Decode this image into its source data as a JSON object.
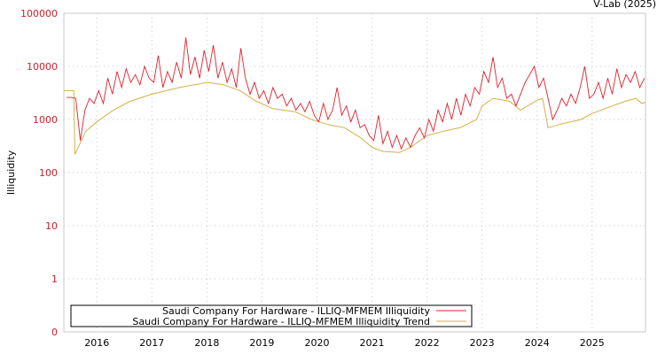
{
  "chart_data": {
    "type": "line",
    "credit": "V-Lab (2025)",
    "ylabel": "Illiquidity",
    "yscale": "log",
    "ylim": [
      0.1,
      100000
    ],
    "y_ticks": [
      {
        "v": 100000,
        "label": "100000"
      },
      {
        "v": 10000,
        "label": "10000"
      },
      {
        "v": 1000,
        "label": "1000"
      },
      {
        "v": 100,
        "label": "100"
      },
      {
        "v": 10,
        "label": "10"
      },
      {
        "v": 1,
        "label": "1"
      },
      {
        "v": 0.1,
        "label": "0"
      }
    ],
    "xlim": [
      2015.4,
      2025.97
    ],
    "x_ticks": [
      {
        "v": 2016,
        "label": "2016"
      },
      {
        "v": 2017,
        "label": "2017"
      },
      {
        "v": 2018,
        "label": "2018"
      },
      {
        "v": 2019,
        "label": "2019"
      },
      {
        "v": 2020,
        "label": "2020"
      },
      {
        "v": 2021,
        "label": "2021"
      },
      {
        "v": 2022,
        "label": "2022"
      },
      {
        "v": 2023,
        "label": "2023"
      },
      {
        "v": 2024,
        "label": "2024"
      },
      {
        "v": 2025,
        "label": "2025"
      }
    ],
    "grid": true,
    "legend_position": "bottom",
    "series": [
      {
        "name": "Saudi Company For Hardware - ILLIQ-MFMEM Illiquidity",
        "color": "#e0202a",
        "x_start": 2015.45,
        "x_step": 0.08333,
        "values": [
          2600,
          2600,
          2500,
          400,
          1500,
          2500,
          2000,
          3500,
          2000,
          6000,
          3000,
          8000,
          4000,
          9000,
          5000,
          7000,
          4500,
          10000,
          6000,
          5000,
          16000,
          4000,
          8000,
          5000,
          12000,
          6000,
          35000,
          7000,
          15000,
          6000,
          20000,
          8000,
          25000,
          6000,
          12000,
          5000,
          9000,
          4000,
          22000,
          6000,
          3000,
          5000,
          2500,
          3500,
          2000,
          4000,
          2500,
          3000,
          1800,
          2500,
          1500,
          2000,
          1400,
          2200,
          1200,
          900,
          2000,
          1000,
          1500,
          4000,
          1200,
          1800,
          900,
          1500,
          700,
          800,
          500,
          400,
          1200,
          350,
          600,
          300,
          500,
          280,
          450,
          300,
          500,
          700,
          450,
          1000,
          600,
          1500,
          900,
          2000,
          1000,
          2500,
          1200,
          3000,
          1800,
          4000,
          3000,
          8000,
          5000,
          15000,
          4000,
          6000,
          2500,
          3000,
          1800,
          3000,
          5000,
          7000,
          10000,
          4000,
          6000,
          2500,
          1000,
          1500,
          2500,
          1800,
          3000,
          2000,
          4000,
          10000,
          2500,
          3000,
          5000,
          2500,
          6000,
          3000,
          9000,
          4000,
          7000,
          5000,
          8000,
          4000,
          6000
        ]
      },
      {
        "name": "Saudi Company For Hardware - ILLIQ-MFMEM Illiquidity Trend",
        "color": "#d4b04a",
        "points": [
          [
            2015.4,
            3500
          ],
          [
            2015.58,
            3500
          ],
          [
            2015.6,
            220
          ],
          [
            2015.8,
            600
          ],
          [
            2016.0,
            900
          ],
          [
            2016.3,
            1500
          ],
          [
            2016.6,
            2200
          ],
          [
            2017.0,
            3000
          ],
          [
            2017.5,
            4000
          ],
          [
            2018.0,
            5000
          ],
          [
            2018.3,
            4500
          ],
          [
            2018.6,
            3500
          ],
          [
            2018.9,
            2200
          ],
          [
            2019.2,
            1600
          ],
          [
            2019.6,
            1400
          ],
          [
            2019.9,
            1000
          ],
          [
            2020.2,
            800
          ],
          [
            2020.5,
            700
          ],
          [
            2020.8,
            450
          ],
          [
            2021.0,
            300
          ],
          [
            2021.2,
            250
          ],
          [
            2021.5,
            240
          ],
          [
            2021.7,
            300
          ],
          [
            2022.0,
            500
          ],
          [
            2022.3,
            600
          ],
          [
            2022.6,
            700
          ],
          [
            2022.9,
            1000
          ],
          [
            2023.0,
            1800
          ],
          [
            2023.2,
            2500
          ],
          [
            2023.5,
            2200
          ],
          [
            2023.7,
            1500
          ],
          [
            2024.0,
            2300
          ],
          [
            2024.1,
            2500
          ],
          [
            2024.2,
            700
          ],
          [
            2024.5,
            850
          ],
          [
            2024.8,
            1000
          ],
          [
            2025.0,
            1300
          ],
          [
            2025.3,
            1700
          ],
          [
            2025.6,
            2200
          ],
          [
            2025.8,
            2500
          ],
          [
            2025.9,
            2000
          ],
          [
            2025.97,
            2100
          ]
        ]
      }
    ]
  }
}
